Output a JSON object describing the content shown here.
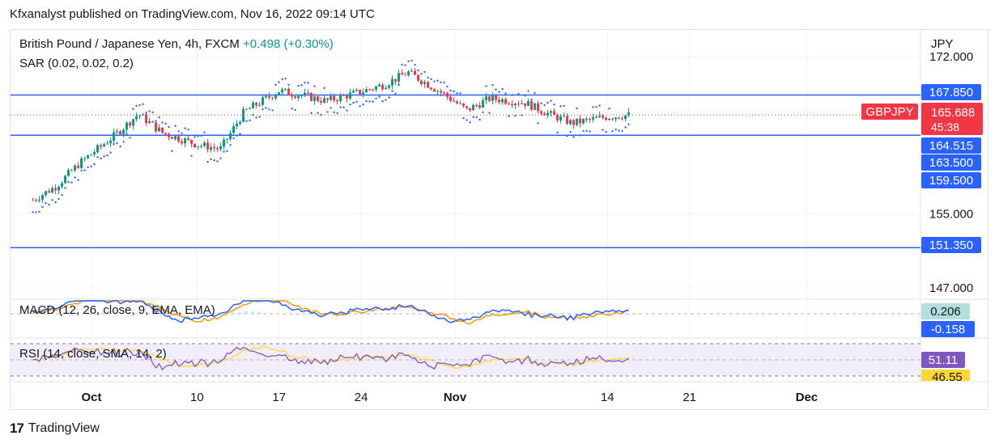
{
  "header": {
    "publisher": "Kfxanalyst published on TradingView.com, Nov 16, 2022 09:14 UTC"
  },
  "legend": {
    "symbol": "British Pound / Japanese Yen, 4h, FXCM",
    "change": "+0.498 (+0.30%)",
    "sar": "SAR (0.02, 0.02, 0.2)",
    "macd": "MACD (12, 26, close, 9, EMA, EMA)",
    "rsi": "RSI (14, close, SMA, 14, 2)"
  },
  "footer": {
    "brand": "TradingView"
  },
  "colors": {
    "level_line": "#2962ff",
    "up": "#089981",
    "down": "#f23645",
    "sar": "#2962ff",
    "macd": "#2962ff",
    "signal": "#ff9800",
    "rsi": "#7e57c2",
    "rsi_ma": "#fdd835",
    "price_tag": "#f23645"
  },
  "chart_data": {
    "type": "candlestick",
    "currency": "JPY",
    "y_ticks": [
      {
        "label": "172.000",
        "value": 172.0
      },
      {
        "label": "155.000",
        "value": 155.0
      },
      {
        "label": "147.000",
        "value": 147.0
      }
    ],
    "x_ticks": [
      "Oct",
      "10",
      "17",
      "24",
      "Nov",
      "14",
      "21",
      "Dec"
    ],
    "levels": [
      {
        "label": "167.850",
        "value": 167.85
      },
      {
        "label": "164.515",
        "value": 164.515
      },
      {
        "label": "163.500",
        "value": 163.5
      },
      {
        "label": "159.500",
        "value": 159.5
      },
      {
        "label": "151.350",
        "value": 151.35
      }
    ],
    "last_price": {
      "symbol": "GBPJPY",
      "value": "165.688",
      "countdown": "45:38"
    },
    "price_path": [
      [
        "Sep 26",
        156.5
      ],
      [
        "Sep 28",
        158.0
      ],
      [
        "Sep 30",
        160.5
      ],
      [
        "Oct 3",
        163.5
      ],
      [
        "Oct 5",
        165.8
      ],
      [
        "Oct 7",
        163.8
      ],
      [
        "Oct 10",
        162.5
      ],
      [
        "Oct 12",
        162.0
      ],
      [
        "Oct 14",
        166.0
      ],
      [
        "Oct 17",
        168.3
      ],
      [
        "Oct 19",
        167.8
      ],
      [
        "Oct 21",
        167.2
      ],
      [
        "Oct 24",
        168.2
      ],
      [
        "Oct 26",
        169.0
      ],
      [
        "Oct 28",
        170.3
      ],
      [
        "Oct 31",
        168.0
      ],
      [
        "Nov 2",
        166.2
      ],
      [
        "Nov 4",
        167.5
      ],
      [
        "Nov 7",
        167.0
      ],
      [
        "Nov 9",
        165.8
      ],
      [
        "Nov 11",
        164.8
      ],
      [
        "Nov 14",
        165.5
      ],
      [
        "Nov 16",
        165.688
      ]
    ],
    "macd": {
      "macd_value": "0.206",
      "signal_value": "-0.158"
    },
    "rsi": {
      "rsi_value": "51.11",
      "ma_value": "46.55",
      "band_upper": 70,
      "band_lower": 30
    }
  }
}
